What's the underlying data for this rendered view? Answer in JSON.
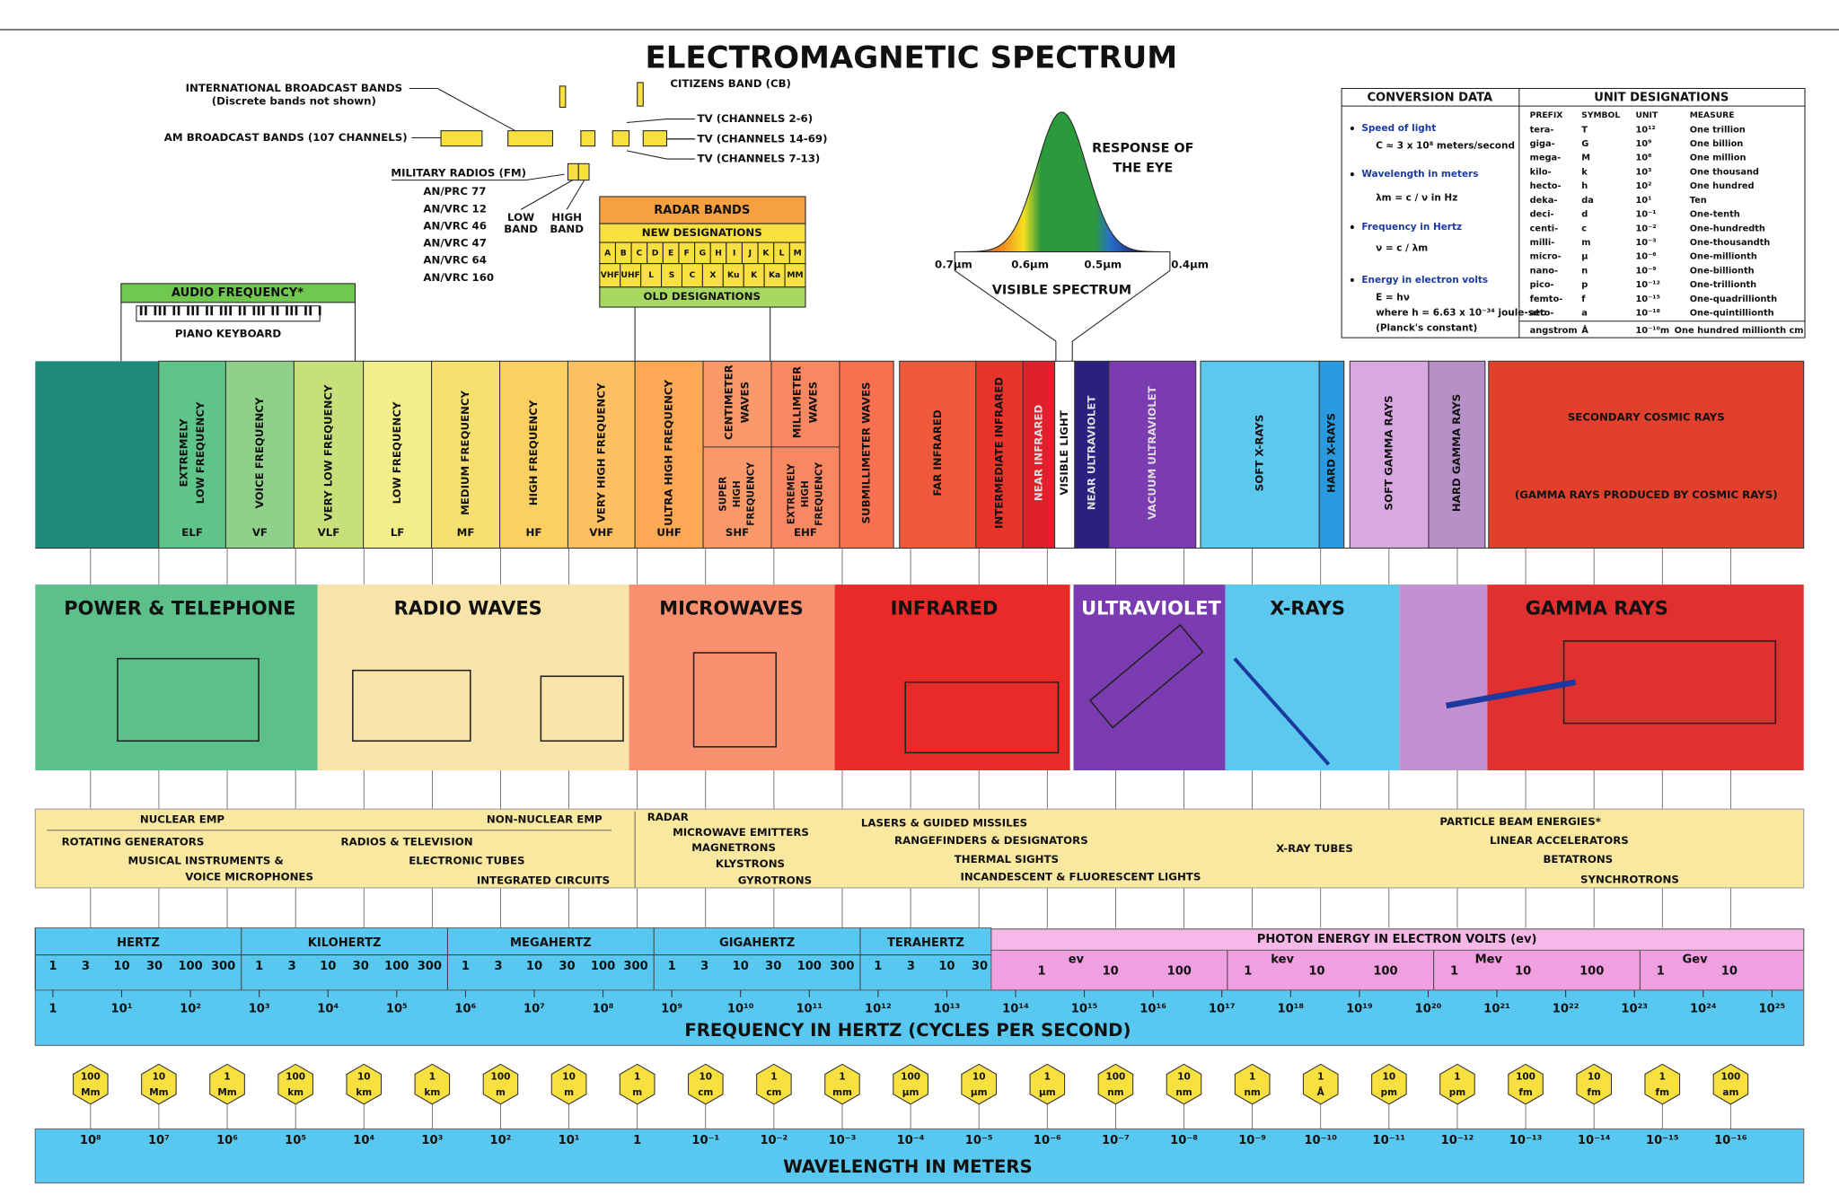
{
  "title": "ELECTROMAGNETIC SPECTRUM",
  "broadcast": {
    "intl": [
      "INTERNATIONAL BROADCAST BANDS",
      "(Discrete bands not shown)"
    ],
    "am": "AM BROADCAST BANDS (107 CHANNELS)",
    "cb": "CITIZENS BAND (CB)",
    "tv": [
      "TV (CHANNELS 2-6)",
      "TV (CHANNELS 14-69)",
      "TV (CHANNELS 7-13)"
    ]
  },
  "military": {
    "title": "MILITARY RADIOS (FM)",
    "radios": [
      "AN/PRC 77",
      "AN/VRC 12",
      "AN/VRC 46",
      "AN/VRC 47",
      "AN/VRC 64",
      "AN/VRC 160"
    ],
    "low": [
      "LOW",
      "BAND"
    ],
    "high": [
      "HIGH",
      "BAND"
    ]
  },
  "radar": {
    "title": "RADAR BANDS",
    "new": "NEW DESIGNATIONS",
    "new_bands": [
      "A",
      "B",
      "C",
      "D",
      "E",
      "F",
      "G",
      "H",
      "I",
      "J",
      "K",
      "L",
      "M"
    ],
    "old_bands": [
      "VHF",
      "UHF",
      "L",
      "S",
      "C",
      "X",
      "Ku",
      "K",
      "Ka",
      "MM"
    ],
    "old": "OLD DESIGNATIONS"
  },
  "audio": {
    "title": "AUDIO FREQUENCY*",
    "keyboard": "PIANO KEYBOARD"
  },
  "eye": {
    "title": [
      "RESPONSE OF",
      "THE EYE"
    ],
    "ticks": [
      "0.7µm",
      "0.6µm",
      "0.5µm",
      "0.4µm"
    ],
    "label": "VISIBLE SPECTRUM"
  },
  "conversion": {
    "title": "CONVERSION DATA",
    "units_title": "UNIT DESIGNATIONS",
    "items": [
      "Speed of light",
      "C ≈ 3 x 10⁸ meters/second",
      "Wavelength in meters",
      "λm = c / ν in Hz",
      "Frequency in Hertz",
      "ν = c / λm",
      "Energy in electron volts",
      "E = hν",
      "where h = 6.63 x 10⁻³⁴ joule-sec",
      "(Planck's constant)"
    ],
    "columns": [
      "PREFIX",
      "SYMBOL",
      "UNIT",
      "MEASURE"
    ],
    "rows": [
      [
        "tera-",
        "T",
        "10¹²",
        "One trillion"
      ],
      [
        "giga-",
        "G",
        "10⁹",
        "One billion"
      ],
      [
        "mega-",
        "M",
        "10⁶",
        "One million"
      ],
      [
        "kilo-",
        "k",
        "10³",
        "One thousand"
      ],
      [
        "hecto-",
        "h",
        "10²",
        "One hundred"
      ],
      [
        "deka-",
        "da",
        "10¹",
        "Ten"
      ],
      [
        "deci-",
        "d",
        "10⁻¹",
        "One-tenth"
      ],
      [
        "centi-",
        "c",
        "10⁻²",
        "One-hundredth"
      ],
      [
        "milli-",
        "m",
        "10⁻³",
        "One-thousandth"
      ],
      [
        "micro-",
        "µ",
        "10⁻⁶",
        "One-millionth"
      ],
      [
        "nano-",
        "n",
        "10⁻⁹",
        "One-billionth"
      ],
      [
        "pico-",
        "p",
        "10⁻¹²",
        "One-trillionth"
      ],
      [
        "femto-",
        "f",
        "10⁻¹⁵",
        "One-quadrillionth"
      ],
      [
        "atto-",
        "a",
        "10⁻¹⁸",
        "One-quintillionth"
      ],
      [
        "angstrom",
        "Å",
        "10⁻¹⁰m",
        "One hundred millionth cm"
      ]
    ]
  },
  "bands": [
    {
      "lines": [
        "EXTREMELY",
        "LOW FREQUENCY"
      ],
      "abbr": "ELF"
    },
    {
      "lines": [
        "VOICE FREQUENCY"
      ],
      "abbr": "VF"
    },
    {
      "lines": [
        "VERY LOW FREQUENCY"
      ],
      "abbr": "VLF"
    },
    {
      "lines": [
        "LOW FREQUENCY"
      ],
      "abbr": "LF"
    },
    {
      "lines": [
        "MEDIUM FREQUENCY"
      ],
      "abbr": "MF"
    },
    {
      "lines": [
        "HIGH FREQUENCY"
      ],
      "abbr": "HF"
    },
    {
      "lines": [
        "VERY HIGH FREQUENCY"
      ],
      "abbr": "VHF"
    },
    {
      "lines": [
        "ULTRA HIGH FREQUENCY"
      ],
      "abbr": "UHF"
    },
    {
      "lines": [
        "CENTIMETER",
        "WAVES"
      ],
      "lower": [
        "SUPER",
        "HIGH",
        "FREQUENCY"
      ],
      "abbr": "SHF"
    },
    {
      "lines": [
        "MILLIMETER",
        "WAVES"
      ],
      "lower": [
        "EXTREMELY",
        "HIGH",
        "FREQUENCY"
      ],
      "abbr": "EHF"
    },
    {
      "lines": [
        "SUBMILLIMETER WAVES"
      ]
    },
    {
      "lines": [
        "FAR INFRARED"
      ]
    },
    {
      "lines": [
        "INTERMEDIATE INFRARED"
      ]
    },
    {
      "lines": [
        "NEAR INFRARED"
      ]
    },
    {
      "lines": [
        "VISIBLE LIGHT"
      ]
    },
    {
      "lines": [
        "NEAR ULTRAVIOLET"
      ]
    },
    {
      "lines": [
        "VACUUM ULTRAVIOLET"
      ]
    },
    {
      "lines": [
        "SOFT X-RAYS"
      ]
    },
    {
      "lines": [
        "HARD X-RAYS"
      ]
    },
    {
      "lines": [
        "SOFT GAMMA RAYS"
      ]
    },
    {
      "lines": [
        "HARD GAMMA RAYS"
      ]
    }
  ],
  "cosmic": [
    "SECONDARY COSMIC RAYS",
    "(GAMMA RAYS PRODUCED BY COSMIC RAYS)"
  ],
  "applications": [
    "POWER & TELEPHONE",
    "RADIO WAVES",
    "MICROWAVES",
    "INFRARED",
    "ULTRAVIOLET",
    "X-RAYS",
    "GAMMA RAYS"
  ],
  "sources": [
    "NUCLEAR EMP",
    "NON-NUCLEAR EMP",
    "ROTATING GENERATORS",
    "MUSICAL INSTRUMENTS &",
    "VOICE MICROPHONES",
    "RADIOS & TELEVISION",
    "ELECTRONIC TUBES",
    "INTEGRATED CIRCUITS",
    "RADAR",
    "MICROWAVE EMITTERS",
    "MAGNETRONS",
    "KLYSTRONS",
    "GYROTRONS",
    "LASERS & GUIDED MISSILES",
    "RANGEFINDERS & DESIGNATORS",
    "THERMAL SIGHTS",
    "INCANDESCENT & FLUORESCENT LIGHTS",
    "X-RAY TUBES",
    "PARTICLE BEAM ENERGIES*",
    "LINEAR ACCELERATORS",
    "BETATRONS",
    "SYNCHROTRONS"
  ],
  "frequency_units": [
    {
      "name": "HERTZ",
      "numbers": [
        1,
        3,
        10,
        30,
        100,
        300
      ]
    },
    {
      "name": "KILOHERTZ",
      "numbers": [
        1,
        3,
        10,
        30,
        100,
        300
      ]
    },
    {
      "name": "MEGAHERTZ",
      "numbers": [
        1,
        3,
        10,
        30,
        100,
        300
      ]
    },
    {
      "name": "GIGAHERTZ",
      "numbers": [
        1,
        3,
        10,
        30,
        100,
        300
      ]
    },
    {
      "name": "TERAHERTZ",
      "numbers": [
        1,
        3,
        10,
        30
      ]
    }
  ],
  "photon": {
    "title": "PHOTON ENERGY IN ELECTRON VOLTS (ev)",
    "groups": [
      {
        "name": "ev",
        "numbers": [
          1,
          10,
          100
        ]
      },
      {
        "name": "kev",
        "numbers": [
          1,
          10,
          100
        ]
      },
      {
        "name": "Mev",
        "numbers": [
          1,
          10,
          100
        ]
      },
      {
        "name": "Gev",
        "numbers": [
          1,
          10
        ]
      }
    ]
  },
  "frequency_powers": [
    "1",
    "10¹",
    "10²",
    "10³",
    "10⁴",
    "10⁵",
    "10⁶",
    "10⁷",
    "10⁸",
    "10⁹",
    "10¹⁰",
    "10¹¹",
    "10¹²",
    "10¹³",
    "10¹⁴",
    "10¹⁵",
    "10¹⁶",
    "10¹⁷",
    "10¹⁸",
    "10¹⁹",
    "10²⁰",
    "10²¹",
    "10²²",
    "10²³",
    "10²⁴",
    "10²⁵"
  ],
  "frequency_title": "FREQUENCY IN HERTZ (CYCLES PER SECOND)",
  "wavelengths": [
    [
      "100",
      "Mm"
    ],
    [
      "10",
      "Mm"
    ],
    [
      "1",
      "Mm"
    ],
    [
      "100",
      "km"
    ],
    [
      "10",
      "km"
    ],
    [
      "1",
      "km"
    ],
    [
      "100",
      "m"
    ],
    [
      "10",
      "m"
    ],
    [
      "1",
      "m"
    ],
    [
      "10",
      "cm"
    ],
    [
      "1",
      "cm"
    ],
    [
      "1",
      "mm"
    ],
    [
      "100",
      "µm"
    ],
    [
      "10",
      "µm"
    ],
    [
      "1",
      "µm"
    ],
    [
      "100",
      "nm"
    ],
    [
      "10",
      "nm"
    ],
    [
      "1",
      "nm"
    ],
    [
      "1",
      "Å"
    ],
    [
      "10",
      "pm"
    ],
    [
      "1",
      "pm"
    ],
    [
      "100",
      "fm"
    ],
    [
      "10",
      "fm"
    ],
    [
      "1",
      "fm"
    ],
    [
      "100",
      "am"
    ]
  ],
  "wavelength_powers": [
    "10⁸",
    "10⁷",
    "10⁶",
    "10⁵",
    "10⁴",
    "10³",
    "10²",
    "10¹",
    "1",
    "10⁻¹",
    "10⁻²",
    "10⁻³",
    "10⁻⁴",
    "10⁻⁵",
    "10⁻⁶",
    "10⁻⁷",
    "10⁻⁸",
    "10⁻⁹",
    "10⁻¹⁰",
    "10⁻¹¹",
    "10⁻¹²",
    "10⁻¹³",
    "10⁻¹⁴",
    "10⁻¹⁵",
    "10⁻¹⁶"
  ],
  "wavelength_title": "WAVELENGTH IN METERS"
}
